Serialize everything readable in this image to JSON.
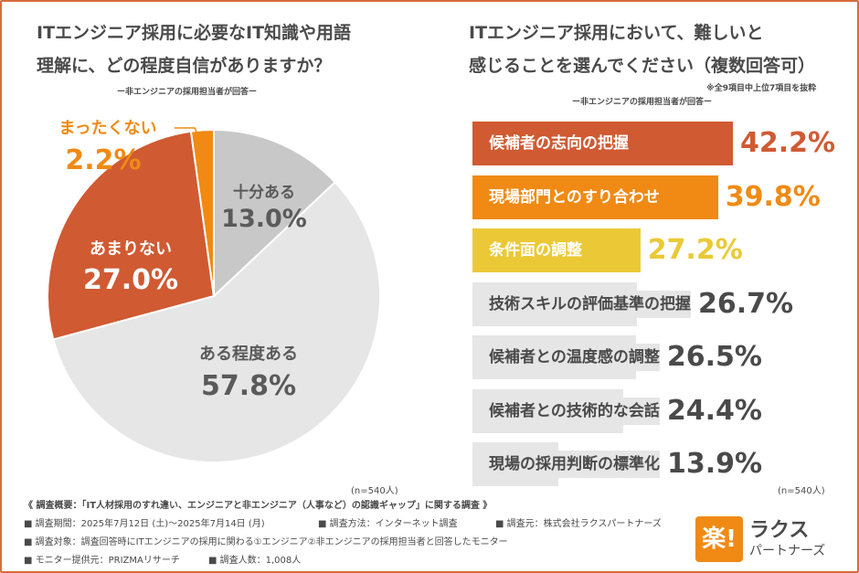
{
  "left": {
    "title_line1": "ITエンジニア採用に必要なIT知識や用語",
    "title_line2": "理解に、どの程度自信がありますか？",
    "subtitle": "ー非エンジニアの採用担当者が回答ー",
    "n": "(n=540人)"
  },
  "right": {
    "title_line1": "ITエンジニア採用において、難しいと",
    "title_line2": "感じることを選んでください（複数回答可）",
    "note": "※全9項目中上位7項目を抜粋",
    "subtitle": "ー非エンジニアの採用担当者が回答ー",
    "n": "(n=540人)"
  },
  "chart_data": [
    {
      "type": "pie",
      "slices": [
        {
          "label": "十分ある",
          "value": 13.0,
          "display": "13.0%",
          "color": "#c8c8c8"
        },
        {
          "label": "ある程度ある",
          "value": 57.8,
          "display": "57.8%",
          "color": "#e6e6e6"
        },
        {
          "label": "あまりない",
          "value": 27.0,
          "display": "27.0%",
          "color": "#d05a32"
        },
        {
          "label": "まったくない",
          "value": 2.2,
          "display": "2.2%",
          "color": "#f08a14"
        }
      ]
    },
    {
      "type": "bar",
      "orientation": "horizontal",
      "categories": [
        "候補者の志向の把握",
        "現場部門とのすり合わせ",
        "条件面の調整",
        "技術スキルの評価基準の把握",
        "候補者との温度感の調整",
        "候補者との技術的な会話",
        "現場の採用判断の標準化"
      ],
      "values": [
        42.2,
        39.8,
        27.2,
        26.7,
        26.5,
        24.4,
        13.9
      ],
      "display": [
        "42.2%",
        "39.8%",
        "27.2%",
        "26.7%",
        "26.5%",
        "24.4%",
        "13.9%"
      ],
      "colors": [
        "#d05a32",
        "#f08a14",
        "#ebc936",
        "#e6e6e6",
        "#e6e6e6",
        "#e6e6e6",
        "#e6e6e6"
      ]
    }
  ],
  "footer": {
    "line1": "《 調査概要：「IT人材採用のすれ違い、エンジニアと非エンジニア（人事など）の認識ギャップ」に関する調査 》",
    "period": "■ 調査期間：2025年7月12日 (土)～2025年7月14日 (月)",
    "method": "■ 調査方法：インターネット調査",
    "org": "■ 調査元：株式会社ラクスパートナーズ",
    "target": "■ 調査対象：調査回答時にITエンジニアの採用に関わる①エンジニア②非エンジニアの採用担当者と回答したモニター",
    "provider": "■ モニター提供元：PRIZMAリサーチ",
    "count": "■ 調査人数：1,008人"
  },
  "logo": {
    "mark": "楽!",
    "name1": "ラクス",
    "name2": "パートナーズ"
  }
}
